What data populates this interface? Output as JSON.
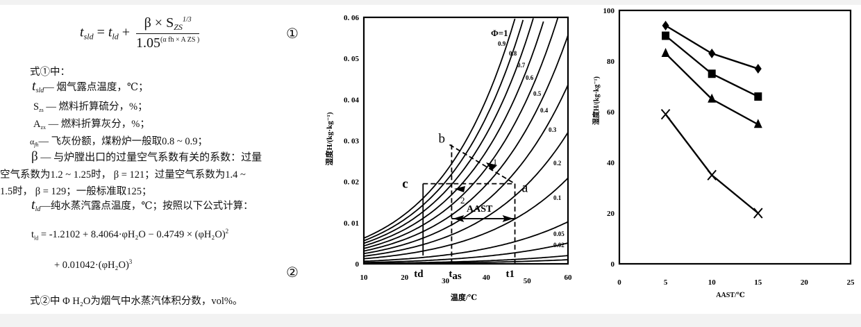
{
  "formula1": {
    "lhs": "t",
    "lhs_sub": "sld",
    "eq": " = ",
    "t_ld": "t",
    "t_ld_sub": "ld",
    "plus": " + ",
    "numerator": "β × S",
    "numerator_sub": "ZS",
    "numerator_exp": "1/3",
    "denominator_base": "1.05",
    "denominator_exp": "(α fh × A ZS )",
    "number": "①"
  },
  "definitions": {
    "intro": "式①中：",
    "t_sld": {
      "sym": "t",
      "sub": "sld",
      "text": "— 烟气露点温度，℃；"
    },
    "s_zs": {
      "sym": "S",
      "sub": "zs",
      "text": " — 燃料折算硫分，%；"
    },
    "a_zx": {
      "sym": "A",
      "sub": "zx",
      "text": " — 燃料折算灰分，%；"
    },
    "alpha_fh": {
      "sym": "α",
      "sub": "fh",
      "text": "— 飞灰份额，煤粉炉一般取0.8 ~ 0.9；"
    },
    "beta": {
      "sym": "β",
      "text_line1": " — 与炉膛出口的过量空气系数有关的系数：过量",
      "text_line2": "空气系数为1.2 ~ 1.25时， β = 121；过量空气系数为1.4 ~",
      "text_line3": "1.5时， β = 129；一般标准取125；"
    },
    "t_ld": {
      "sym": "t",
      "sub": "ld",
      "text": "—纯水蒸汽露点温度，℃；按照以下公式计算："
    }
  },
  "formula2": {
    "line1": "t",
    "line1_sub": "ld",
    "line1_rest": " = -1.2102 + 8.4064·φH₂O − 0.4749 × (φH₂O)",
    "line1_exp": "2",
    "line2": "+ 0.01042·(φH₂O)",
    "line2_exp": "3",
    "number": "②"
  },
  "footnote": "式②中 Φ H₂O为烟气中水蒸汽体积分数，vol%。",
  "chart_data": [
    {
      "type": "line",
      "title": "",
      "xlabel": "温度/℃",
      "ylabel": "湿度H/(kg·kg⁻¹)",
      "xlim": [
        10,
        60
      ],
      "ylim": [
        0,
        0.06
      ],
      "x_ticks": [
        "10",
        "20",
        "30",
        "40",
        "50",
        "60"
      ],
      "y_ticks": [
        "0",
        "0.01",
        "0.02",
        "0.03",
        "0.04",
        "0.05",
        "0.06"
      ],
      "grid": false,
      "series_label_prefix": "Φ = 1",
      "curve_labels": [
        "Φ=1",
        "0.9",
        "0.8",
        "0.7",
        "0.6",
        "0.5",
        "0.4",
        "0.3",
        "0.2",
        "0.1",
        "0.05",
        "0.02"
      ],
      "annotations": {
        "points": [
          "a",
          "b",
          "c"
        ],
        "arrows": [
          "1",
          "2"
        ],
        "span_label": "AAST",
        "x_markers": [
          "td",
          "tas",
          "t1"
        ],
        "a": {
          "x": 47,
          "y": 0.0195
        },
        "b": {
          "x": 31,
          "y": 0.029
        },
        "c": {
          "x": 24.5,
          "y": 0.0195
        },
        "td": 24.5,
        "tas": 31.5,
        "t1": 47
      }
    },
    {
      "type": "line",
      "title": "",
      "xlabel": "AAST/℃",
      "ylabel": "湿度H/(kg·kg⁻¹)",
      "xlim": [
        0,
        25
      ],
      "ylim": [
        0,
        100
      ],
      "x_ticks": [
        "0",
        "5",
        "10",
        "15",
        "20",
        "25"
      ],
      "y_ticks": [
        "0",
        "20",
        "40",
        "60",
        "80",
        "100"
      ],
      "grid": false,
      "x": [
        5,
        10,
        15
      ],
      "series": [
        {
          "name": "diamond",
          "marker": "diamond",
          "values": [
            94,
            83,
            77
          ]
        },
        {
          "name": "square",
          "marker": "square",
          "values": [
            90,
            75,
            66
          ]
        },
        {
          "name": "triangle",
          "marker": "triangle",
          "values": [
            83,
            65,
            55
          ]
        },
        {
          "name": "cross",
          "marker": "x",
          "values": [
            59,
            35,
            20
          ]
        }
      ]
    }
  ]
}
